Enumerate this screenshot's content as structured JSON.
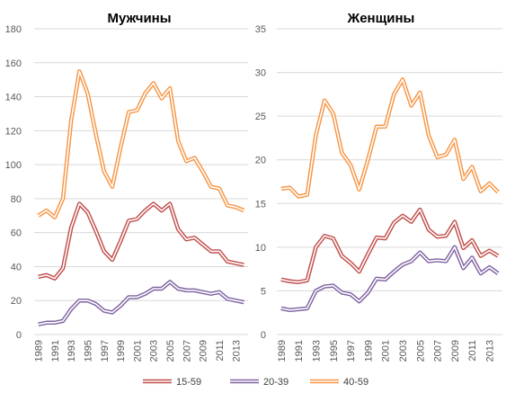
{
  "chart_data": [
    {
      "type": "line",
      "title": "Мужчины",
      "x": [
        1989,
        1990,
        1991,
        1992,
        1993,
        1994,
        1995,
        1996,
        1997,
        1998,
        1999,
        2000,
        2001,
        2002,
        2003,
        2004,
        2005,
        2006,
        2007,
        2008,
        2009,
        2010,
        2011,
        2012,
        2013,
        2014
      ],
      "x_tick_labels": [
        "1989",
        "1991",
        "1993",
        "1995",
        "1997",
        "1999",
        "2001",
        "2003",
        "2005",
        "2007",
        "2009",
        "2011",
        "2013"
      ],
      "ylim": [
        0,
        180
      ],
      "y_ticks": [
        0,
        20,
        40,
        60,
        80,
        100,
        120,
        140,
        160,
        180
      ],
      "grid": true,
      "series": [
        {
          "name": "15-59",
          "color": "#c0504d",
          "values": [
            34,
            35,
            33,
            39,
            63,
            77,
            72,
            61,
            49,
            44,
            55,
            67,
            68,
            73,
            77,
            73,
            77,
            62,
            56,
            57,
            53,
            49,
            49,
            43,
            42,
            41
          ]
        },
        {
          "name": "20-39",
          "color": "#8064a2",
          "values": [
            6,
            7,
            7,
            8,
            15,
            20,
            20,
            18,
            14,
            13,
            17,
            22,
            22,
            24,
            27,
            27,
            31,
            27,
            26,
            26,
            25,
            24,
            25,
            21,
            20,
            19
          ]
        },
        {
          "name": "40-59",
          "color": "#f79646",
          "values": [
            70,
            73,
            69,
            80,
            126,
            155,
            142,
            118,
            96,
            87,
            110,
            131,
            132,
            142,
            148,
            139,
            145,
            114,
            102,
            104,
            96,
            87,
            86,
            76,
            75,
            73
          ]
        }
      ]
    },
    {
      "type": "line",
      "title": "Женщины",
      "x": [
        1989,
        1990,
        1991,
        1992,
        1993,
        1994,
        1995,
        1996,
        1997,
        1998,
        1999,
        2000,
        2001,
        2002,
        2003,
        2004,
        2005,
        2006,
        2007,
        2008,
        2009,
        2010,
        2011,
        2012,
        2013,
        2014
      ],
      "x_tick_labels": [
        "1989",
        "1991",
        "1993",
        "1995",
        "1997",
        "1999",
        "2001",
        "2003",
        "2005",
        "2007",
        "2009",
        "2011",
        "2013"
      ],
      "ylim": [
        0,
        35
      ],
      "y_ticks": [
        0,
        5,
        10,
        15,
        20,
        25,
        30,
        35
      ],
      "grid": true,
      "series": [
        {
          "name": "15-59",
          "color": "#c0504d",
          "values": [
            6.3,
            6.1,
            6,
            6.2,
            10,
            11.3,
            11,
            9,
            8.2,
            7.2,
            9.2,
            11.1,
            11,
            12.8,
            13.6,
            12.9,
            14.3,
            12,
            11.2,
            11.3,
            12.9,
            9.9,
            10.8,
            9,
            9.6,
            9
          ]
        },
        {
          "name": "20-39",
          "color": "#8064a2",
          "values": [
            3,
            2.8,
            2.9,
            3,
            5,
            5.5,
            5.6,
            4.8,
            4.6,
            3.8,
            4.8,
            6.4,
            6.3,
            7.2,
            8,
            8.4,
            9.4,
            8.4,
            8.5,
            8.4,
            10,
            7.6,
            8.8,
            7,
            7.7,
            7
          ]
        },
        {
          "name": "40-59",
          "color": "#f79646",
          "values": [
            16.7,
            16.8,
            15.8,
            16,
            22.8,
            26.8,
            25.3,
            20.8,
            19.4,
            16.6,
            20,
            23.8,
            23.8,
            27.5,
            29.2,
            26.2,
            27.7,
            22.8,
            20.3,
            20.6,
            22.3,
            17.8,
            19.2,
            16.4,
            17.3,
            16.3
          ]
        }
      ]
    }
  ],
  "legend": {
    "placement": "bottom",
    "items": [
      {
        "label": "15-59",
        "color": "#c0504d"
      },
      {
        "label": "20-39",
        "color": "#8064a2"
      },
      {
        "label": "40-59",
        "color": "#f79646"
      }
    ]
  }
}
